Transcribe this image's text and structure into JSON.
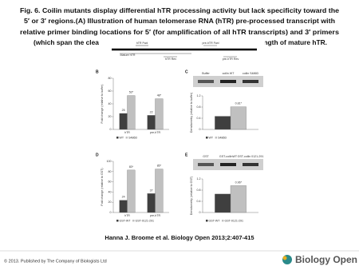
{
  "title_lines": [
    "Fig. 6. Coilin mutants display differential hTR processing activity but lack specificity toward the",
    "5′ or 3′ regions.(A) Illustration of human telomerase RNA (hTR) pre-processed transcript with",
    "relative primer binding locations for 5′ (for amplification of all hTR transcripts) and 3′ primers"
  ],
  "title_fragments": [
    "(which span the cleav",
    "length of mature hTR."
  ],
  "panel_a": {
    "labels": [
      "hTR Fwd",
      "pre-hTR Fwd",
      "Mature hTR",
      "hTR Rev",
      "pre-hTR Rev"
    ]
  },
  "panels": [
    {
      "label": "B",
      "y_label": "Fold change (relative to buffer)",
      "categories": [
        "hTR",
        "pre-hTR"
      ],
      "ylim": [
        0,
        80
      ],
      "yticks": [
        0,
        20,
        40,
        60,
        80
      ],
      "series": [
        {
          "name": "WT",
          "color": "#3f3f3f",
          "values": [
            25,
            22
          ],
          "value_labels": [
            "25",
            "22"
          ]
        },
        {
          "name": "S486D",
          "color": "#c0c0c0",
          "values": [
            53,
            48
          ],
          "value_labels": [
            "53*",
            "48*"
          ]
        }
      ]
    },
    {
      "label": "C",
      "y_label": "Densitometry (relative to buffer)",
      "gel_labels": [
        "Buffer",
        "coilin WT",
        "coilin S486D"
      ],
      "categories": [
        null
      ],
      "ylim": [
        0,
        1.2
      ],
      "yticks": [
        0,
        0.4,
        0.8,
        1.2
      ],
      "series": [
        {
          "name": "WT",
          "color": "#3f3f3f",
          "values": [
            0.47
          ]
        },
        {
          "name": "S486D",
          "color": "#c0c0c0",
          "values": [
            0.81
          ],
          "value_labels": [
            "0.81*"
          ]
        }
      ]
    },
    {
      "label": "D",
      "y_label": "Fold change (relative to GST)",
      "categories": [
        "hTR",
        "pre-hTR"
      ],
      "ylim": [
        0,
        100
      ],
      "yticks": [
        0,
        20,
        40,
        60,
        80,
        100
      ],
      "series": [
        {
          "name": "GST-WT",
          "color": "#3f3f3f",
          "values": [
            24,
            37
          ],
          "value_labels": [
            "24",
            "37"
          ]
        },
        {
          "name": "GST-0121-291",
          "color": "#c0c0c0",
          "values": [
            83,
            85
          ],
          "value_labels": [
            "83*",
            "85*"
          ]
        }
      ]
    },
    {
      "label": "E",
      "y_label": "Densitometry (relative to GST)",
      "gel_labels": [
        "GST",
        "GST-coilinWT",
        "GST-coilin 0121-291"
      ],
      "categories": [
        null
      ],
      "ylim": [
        0,
        1.2
      ],
      "yticks": [
        0,
        0.4,
        0.8,
        1.2
      ],
      "series": [
        {
          "name": "GST-WT",
          "color": "#3f3f3f",
          "values": [
            0.66
          ]
        },
        {
          "name": "GST-0121-291",
          "color": "#c0c0c0",
          "values": [
            0.96
          ],
          "value_labels": [
            "0.96*"
          ]
        }
      ]
    }
  ],
  "citation": "Hanna J. Broome et al. Biology Open 2013;2:407-415",
  "copyright": "© 2013. Published by The Company of Biologists Ltd",
  "logo": "Biology Open"
}
